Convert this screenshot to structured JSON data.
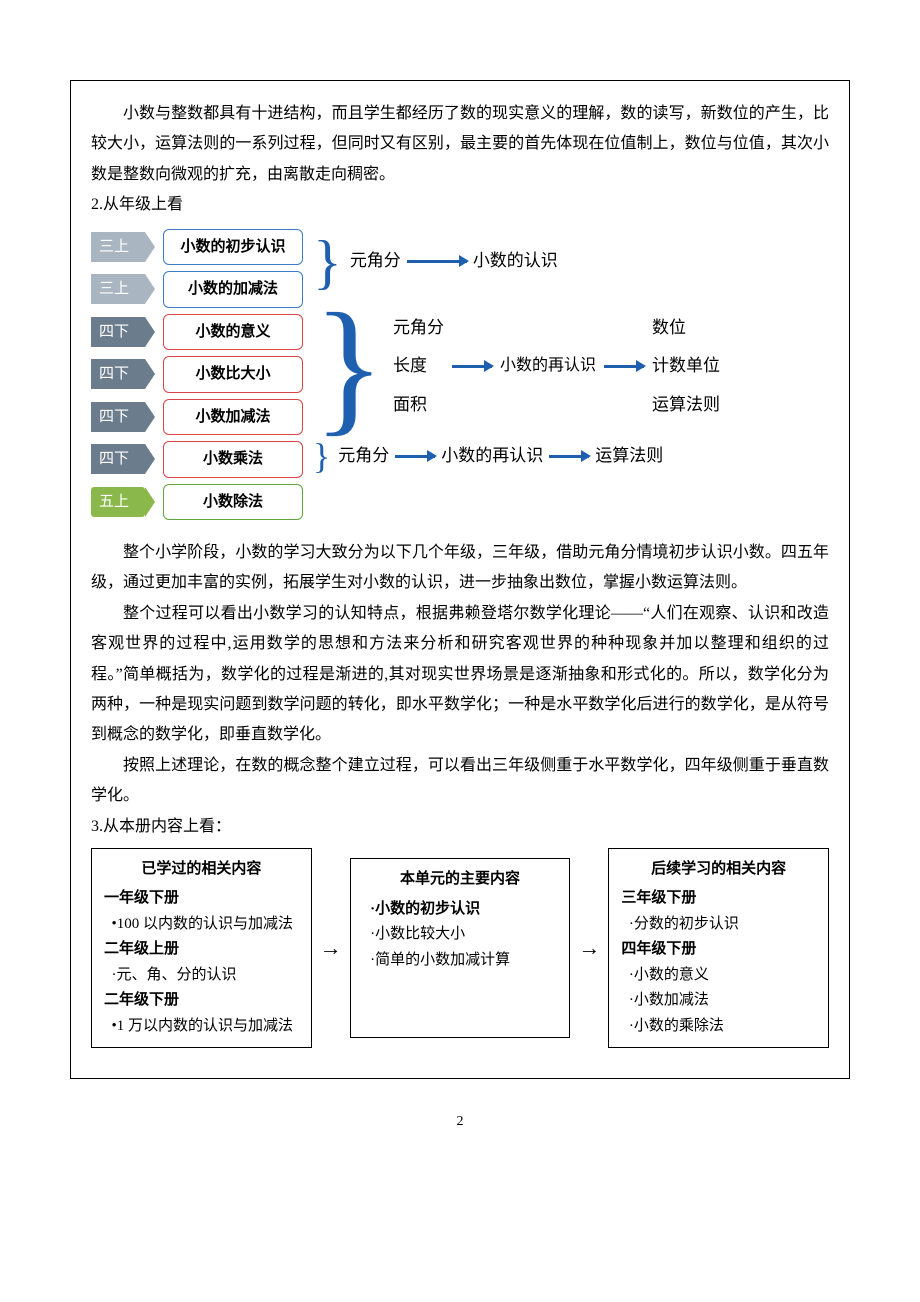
{
  "intro_para": "小数与整数都具有十进结构，而且学生都经历了数的现实意义的理解，数的读写，新数位的产生，比较大小，运算法则的一系列过程，但同时又有区别，最主要的首先体现在位值制上，数位与位值，其次小数是整数向微观的扩充，由离散走向稠密。",
  "sec2_heading": "2.从年级上看",
  "diagram1": {
    "rows": [
      {
        "grade": "三上",
        "grade_cls": "gt-gray",
        "topic": "小数的初步认识",
        "topic_cls": "tb-blue"
      },
      {
        "grade": "三上",
        "grade_cls": "gt-gray",
        "topic": "小数的加减法",
        "topic_cls": "tb-blue"
      },
      {
        "grade": "四下",
        "grade_cls": "gt-dark",
        "topic": "小数的意义",
        "topic_cls": "tb-red"
      },
      {
        "grade": "四下",
        "grade_cls": "gt-dark",
        "topic": "小数比大小",
        "topic_cls": "tb-red"
      },
      {
        "grade": "四下",
        "grade_cls": "gt-dark",
        "topic": "小数加减法",
        "topic_cls": "tb-red"
      },
      {
        "grade": "四下",
        "grade_cls": "gt-dark",
        "topic": "小数乘法",
        "topic_cls": "tb-red"
      },
      {
        "grade": "五上",
        "grade_cls": "gt-green",
        "topic": "小数除法",
        "topic_cls": "tb-green"
      }
    ],
    "group1": {
      "left": "元角分",
      "right": "小数的认识"
    },
    "group2": {
      "col_left": [
        "元角分",
        "长度",
        "面积"
      ],
      "mid": "小数的再认识",
      "col_right": [
        "数位",
        "计数单位",
        "运算法则"
      ]
    },
    "group3": {
      "left": "元角分",
      "mid": "小数的再认识",
      "right": "运算法则"
    }
  },
  "p_stage": "整个小学阶段，小数的学习大致分为以下几个年级，三年级，借助元角分情境初步认识小数。四五年级，通过更加丰富的实例，拓展学生对小数的认识，进一步抽象出数位，掌握小数运算法则。",
  "p_theory": "整个过程可以看出小数学习的认知特点，根据弗赖登塔尔数学化理论——“人们在观察、认识和改造客观世界的过程中,运用数学的思想和方法来分析和研究客观世界的种种现象并加以整理和组织的过程。”简单概括为，数学化的过程是渐进的,其对现实世界场景是逐渐抽象和形式化的。所以，数学化分为两种，一种是现实问题到数学问题的转化，即水平数学化；一种是水平数学化后进行的数学化，是从符号到概念的数学化，即垂直数学化。",
  "p_conclude": "按照上述理论，在数的概念整个建立过程，可以看出三年级侧重于水平数学化，四年级侧重于垂直数学化。",
  "sec3_heading": "3.从本册内容上看：",
  "diagram2": {
    "box1": {
      "title": "已学过的相关内容",
      "lines": [
        {
          "text": "一年级下册",
          "cls": "d2-sub"
        },
        {
          "text": "•100 以内数的认识与加减法",
          "cls": "d2-item"
        },
        {
          "text": "二年级上册",
          "cls": "d2-sub"
        },
        {
          "text": "·元、角、分的认识",
          "cls": "d2-item"
        },
        {
          "text": "二年级下册",
          "cls": "d2-sub"
        },
        {
          "text": "•1 万以内数的认识与加减法",
          "cls": "d2-item"
        }
      ]
    },
    "box2": {
      "title": "本单元的主要内容",
      "lines": [
        {
          "text": "·小数的初步认识",
          "cls": "d2-item-bold"
        },
        {
          "text": "·小数比较大小",
          "cls": "d2-item"
        },
        {
          "text": "·简单的小数加减计算",
          "cls": "d2-item"
        }
      ]
    },
    "box3": {
      "title": "后续学习的相关内容",
      "lines": [
        {
          "text": "三年级下册",
          "cls": "d2-sub"
        },
        {
          "text": "·分数的初步认识",
          "cls": "d2-item"
        },
        {
          "text": "四年级下册",
          "cls": "d2-sub"
        },
        {
          "text": "·小数的意义",
          "cls": "d2-item"
        },
        {
          "text": "·小数加减法",
          "cls": "d2-item"
        },
        {
          "text": "·小数的乘除法",
          "cls": "d2-item"
        }
      ]
    },
    "arrow": "→"
  },
  "page_number": "2"
}
